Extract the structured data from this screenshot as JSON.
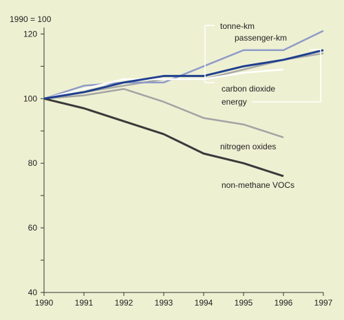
{
  "chart_data": {
    "type": "line",
    "index_label": "1990 = 100",
    "x": [
      1990,
      1991,
      1992,
      1993,
      1994,
      1995,
      1996,
      1997
    ],
    "xlim": [
      1990,
      1997
    ],
    "ylim": [
      40,
      122
    ],
    "y_ticks": [
      40,
      60,
      80,
      100,
      120
    ],
    "grid": false,
    "legend": "inline-labels",
    "colors": {
      "background": "#eef0d2",
      "axis": "#333333",
      "tonne_km": "#8e9ac8",
      "passenger_km": "#1f3f8f",
      "carbon_dioxide": "#ffffff",
      "energy": "#a8a8a8",
      "nitrogen_oxides": "#a3a3a3",
      "nmvoc": "#3a3a3a"
    },
    "series": [
      {
        "name": "tonne-km",
        "color_key": "tonne_km",
        "width": 2.5,
        "values": [
          100,
          104,
          105,
          105,
          110,
          115,
          115,
          121
        ]
      },
      {
        "name": "passenger-km",
        "color_key": "passenger_km",
        "width": 3,
        "values": [
          100,
          102,
          105,
          107,
          107,
          110,
          112,
          115
        ]
      },
      {
        "name": "carbon dioxide",
        "color_key": "carbon_dioxide",
        "width": 2.5,
        "values": [
          100,
          103,
          106,
          106,
          106,
          108,
          109,
          null
        ]
      },
      {
        "name": "energy",
        "color_key": "energy",
        "width": 2.5,
        "values": [
          100,
          102,
          104,
          106,
          106,
          109,
          112,
          114
        ]
      },
      {
        "name": "nitrogen oxides",
        "color_key": "nitrogen_oxides",
        "width": 2.5,
        "values": [
          100,
          101,
          103,
          99,
          94,
          92,
          88,
          null
        ]
      },
      {
        "name": "non-methane VOCs",
        "color_key": "nmvoc",
        "width": 3,
        "values": [
          100,
          97,
          93,
          89,
          83,
          80,
          76,
          null
        ]
      }
    ]
  }
}
